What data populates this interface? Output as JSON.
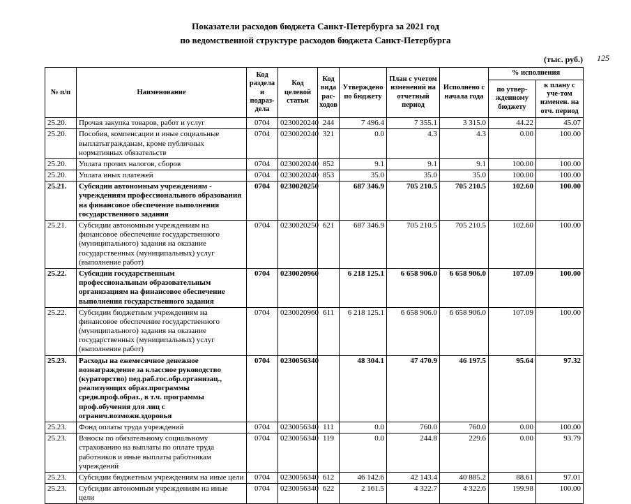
{
  "page": {
    "title_line1": "Показатели расходов бюджета Санкт-Петербурга за 2021 год",
    "title_line2": "по ведомственной структуре расходов бюджета Санкт-Петербурга",
    "units_note": "(тыс. руб.)",
    "page_number": "125"
  },
  "table": {
    "headers": {
      "num": "№ п/п",
      "name": "Наименование",
      "kod_razdel": "Код раздела и подраз-дела",
      "kod_stat": "Код целевой статьи",
      "kod_vid": "Код вида рас-ходов",
      "utverzhdeno": "Утверждено по бюджету",
      "plan": "План с учетом изменений на отчетный период",
      "ispolneno": "Исполнено с начала года",
      "pct_group": "% исполнения",
      "pct_budget": "по утвер-жденному бюджету",
      "pct_plan": "к плану с уче-том изменен. на отч. период"
    },
    "rows": [
      {
        "num": "25.20.",
        "name": "Прочая закупка товаров, работ и услуг",
        "razdel": "0704",
        "stat": "0230020240",
        "vid": "244",
        "utv": "7 496.4",
        "plan": "7 355.1",
        "isp": "3 315.0",
        "p1": "44.22",
        "p2": "45.07",
        "bold": false
      },
      {
        "num": "25.20.",
        "name": "Пособия, компенсации и иные социальные выплатыгражданам, кроме публичных нормативных обязательств",
        "razdel": "0704",
        "stat": "0230020240",
        "vid": "321",
        "utv": "0.0",
        "plan": "4.3",
        "isp": "4.3",
        "p1": "0.00",
        "p2": "100.00",
        "bold": false
      },
      {
        "num": "25.20.",
        "name": "Уплата прочих налогов, сборов",
        "razdel": "0704",
        "stat": "0230020240",
        "vid": "852",
        "utv": "9.1",
        "plan": "9.1",
        "isp": "9.1",
        "p1": "100.00",
        "p2": "100.00",
        "bold": false
      },
      {
        "num": "25.20.",
        "name": "Уплата иных платежей",
        "razdel": "0704",
        "stat": "0230020240",
        "vid": "853",
        "utv": "35.0",
        "plan": "35.0",
        "isp": "35.0",
        "p1": "100.00",
        "p2": "100.00",
        "bold": false
      },
      {
        "num": "25.21.",
        "name": "Субсидии автономным учреждениям - учреждениям профессионального образования на финансовое обеспечение выполнения государственного задания",
        "razdel": "0704",
        "stat": "0230020250",
        "vid": "",
        "utv": "687 346.9",
        "plan": "705 210.5",
        "isp": "705 210.5",
        "p1": "102.60",
        "p2": "100.00",
        "bold": true
      },
      {
        "num": "25.21.",
        "name": "Субсидии автономным учреждениям на финансовое обеспечение государственного (муниципального) задания на оказание государственных (муниципальных) услуг (выполнение работ)",
        "razdel": "0704",
        "stat": "0230020250",
        "vid": "621",
        "utv": "687 346.9",
        "plan": "705 210.5",
        "isp": "705 210.5",
        "p1": "102.60",
        "p2": "100.00",
        "bold": false
      },
      {
        "num": "25.22.",
        "name": "Субсидии государственным профессиональным образовательным организациям на финансовое обеспечение выполнения государственного задания",
        "razdel": "0704",
        "stat": "0230020960",
        "vid": "",
        "utv": "6 218 125.1",
        "plan": "6 658 906.0",
        "isp": "6 658 906.0",
        "p1": "107.09",
        "p2": "100.00",
        "bold": true
      },
      {
        "num": "25.22.",
        "name": "Субсидии бюджетным учреждениям на финансовое обеспечение государственного (муниципального) задания на оказание государственных (муниципальных) услуг (выполнение работ)",
        "razdel": "0704",
        "stat": "0230020960",
        "vid": "611",
        "utv": "6 218 125.1",
        "plan": "6 658 906.0",
        "isp": "6 658 906.0",
        "p1": "107.09",
        "p2": "100.00",
        "bold": false
      },
      {
        "num": "25.23.",
        "name": "Расходы на ежемесячное денежное вознаграждение за классное руководство (кураторство) пед.раб.гос.обр.организац., реализующих образ.программы средн.проф.образ., в т.ч. программы проф.обучения для лиц с огранич.возможн.здоровья",
        "razdel": "0704",
        "stat": "0230056340",
        "vid": "",
        "utv": "48 304.1",
        "plan": "47 470.9",
        "isp": "46 197.5",
        "p1": "95.64",
        "p2": "97.32",
        "bold": true
      },
      {
        "num": "25.23.",
        "name": "Фонд оплаты труда учреждений",
        "razdel": "0704",
        "stat": "0230056340",
        "vid": "111",
        "utv": "0.0",
        "plan": "760.0",
        "isp": "760.0",
        "p1": "0.00",
        "p2": "100.00",
        "bold": false
      },
      {
        "num": "25.23.",
        "name": "Взносы по обязательному социальному страхованию на выплаты по оплате труда работников и иные выплаты работникам учреждений",
        "razdel": "0704",
        "stat": "0230056340",
        "vid": "119",
        "utv": "0.0",
        "plan": "244.8",
        "isp": "229.6",
        "p1": "0.00",
        "p2": "93.79",
        "bold": false
      },
      {
        "num": "25.23.",
        "name": "Субсидии бюджетным учреждениям на иные цели",
        "razdel": "0704",
        "stat": "0230056340",
        "vid": "612",
        "utv": "46 142.6",
        "plan": "42 143.4",
        "isp": "40 885.2",
        "p1": "88.61",
        "p2": "97.01",
        "bold": false
      },
      {
        "num": "25.23.",
        "name": "Субсидии автономным учреждениям на иные цели",
        "razdel": "0704",
        "stat": "0230056340",
        "vid": "622",
        "utv": "2 161.5",
        "plan": "4 322.7",
        "isp": "4 322.6",
        "p1": "199.98",
        "p2": "100.00",
        "bold": false
      }
    ]
  }
}
